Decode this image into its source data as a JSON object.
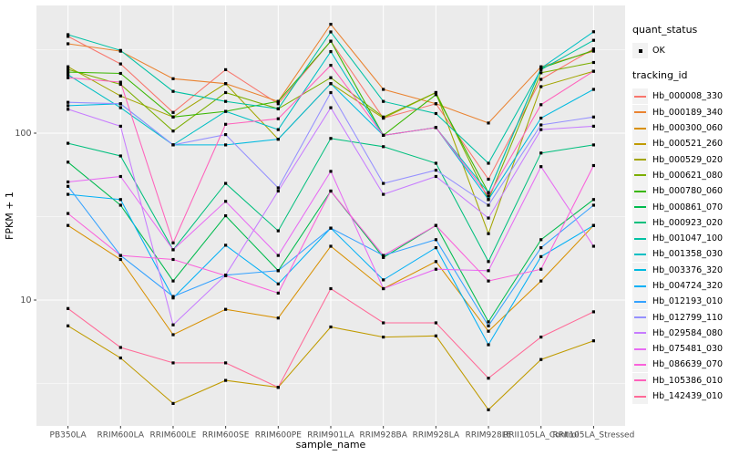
{
  "legend": {
    "quant_status": {
      "title": "quant_status",
      "items": [
        {
          "label": "OK",
          "marker": "black-square"
        }
      ]
    },
    "tracking": {
      "title": "tracking_id"
    }
  },
  "colors": {
    "panel_bg": "#EBEBEB",
    "grid": "#FFFFFF",
    "tick_text": "#4D4D4D",
    "axis_title": "#000000",
    "marker": "#000000",
    "legend_key_bg": "#F2F2F2"
  },
  "chart_data": {
    "type": "line",
    "title": "",
    "xlabel": "sample_name",
    "ylabel": "FPKM + 1",
    "y_scale": "log10",
    "ylim": [
      1.76,
      582
    ],
    "y_major_ticks": [
      10,
      100
    ],
    "y_minor_ticks": [
      3.162,
      31.62,
      316.2
    ],
    "grid": true,
    "legend_position": "right",
    "marker": "black-square",
    "categories": [
      "PB350LA",
      "RRIM600LA",
      "RRIM600LE",
      "RRIM600SE",
      "RRIM600PE",
      "RRIM901LA",
      "RRIM928BA",
      "RRIM928LA",
      "RRIM928LE",
      "RRII105LA_Control",
      "RRII105LA_Stressed"
    ],
    "series": [
      {
        "name": "Hb_000008_330",
        "color": "#F8766D",
        "quant_status": "OK",
        "values": [
          380,
          260,
          133,
          240,
          150,
          356,
          123,
          150,
          53,
          210,
          320
        ]
      },
      {
        "name": "Hb_000189_340",
        "color": "#EA8331",
        "quant_status": "OK",
        "values": [
          343,
          310,
          212,
          198,
          155,
          449,
          183,
          150,
          115,
          250,
          310
        ]
      },
      {
        "name": "Hb_000300_060",
        "color": "#D89000",
        "quant_status": "OK",
        "values": [
          28,
          17.5,
          6.2,
          8.8,
          7.8,
          21,
          11.7,
          17,
          6.5,
          13,
          28
        ]
      },
      {
        "name": "Hb_000521_260",
        "color": "#C09B00",
        "quant_status": "OK",
        "values": [
          7,
          4.5,
          2.4,
          3.3,
          3,
          6.9,
          6,
          6.1,
          2.2,
          4.4,
          5.7
        ]
      },
      {
        "name": "Hb_000529_020",
        "color": "#A3A500",
        "quant_status": "OK",
        "values": [
          250,
          167,
          125,
          198,
          92,
          198,
          123,
          175,
          25,
          190,
          235
        ]
      },
      {
        "name": "Hb_000621_080",
        "color": "#7CAE00",
        "quant_status": "OK",
        "values": [
          241,
          196,
          103,
          175,
          140,
          215,
          125,
          175,
          40,
          230,
          265
        ]
      },
      {
        "name": "Hb_000780_060",
        "color": "#39B600",
        "quant_status": "OK",
        "values": [
          232,
          228,
          125,
          135,
          155,
          356,
          97,
          170,
          44,
          245,
          313
        ]
      },
      {
        "name": "Hb_000861_070",
        "color": "#00BB4E",
        "quant_status": "OK",
        "values": [
          67,
          37,
          13,
          32,
          15,
          45,
          18,
          28,
          7.4,
          23,
          40
        ]
      },
      {
        "name": "Hb_000923_020",
        "color": "#00BF7D",
        "quant_status": "OK",
        "values": [
          87,
          73,
          20,
          50,
          26,
          93,
          83,
          66,
          17,
          76,
          85
        ]
      },
      {
        "name": "Hb_001047_100",
        "color": "#00C1A3",
        "quant_status": "OK",
        "values": [
          389,
          313,
          178,
          155,
          140,
          404,
          155,
          131,
          66,
          240,
          360
        ]
      },
      {
        "name": "Hb_001358_030",
        "color": "#00BFC4",
        "quant_status": "OK",
        "values": [
          224,
          142,
          85,
          135,
          105,
          308,
          97,
          108,
          44,
          245,
          405
        ]
      },
      {
        "name": "Hb_003376_320",
        "color": "#00BAE0",
        "quant_status": "OK",
        "values": [
          146,
          150,
          85,
          85,
          92,
          198,
          97,
          108,
          40,
          123,
          183
        ]
      },
      {
        "name": "Hb_004724_320",
        "color": "#00B0F6",
        "quant_status": "OK",
        "values": [
          43,
          40,
          10.3,
          21.3,
          12.5,
          27,
          13.2,
          20.6,
          5.4,
          18.2,
          28
        ]
      },
      {
        "name": "Hb_012193_010",
        "color": "#35A2FF",
        "quant_status": "OK",
        "values": [
          48,
          18.5,
          10.5,
          14.1,
          15,
          27,
          18.5,
          23,
          7,
          20.6,
          37
        ]
      },
      {
        "name": "Hb_012799_110",
        "color": "#9590FF",
        "quant_status": "OK",
        "values": [
          153,
          150,
          85,
          98,
          47,
          175,
          50,
          60,
          37,
          112,
          125
        ]
      },
      {
        "name": "Hb_029584_080",
        "color": "#C77CFF",
        "quant_status": "OK",
        "values": [
          139,
          110,
          7.1,
          14.1,
          45,
          142,
          43,
          55,
          31,
          105,
          110
        ]
      },
      {
        "name": "Hb_075481_030",
        "color": "#E76BF3",
        "quant_status": "OK",
        "values": [
          51,
          55,
          20,
          39,
          18.5,
          59,
          11.7,
          15.3,
          15,
          63,
          21
        ]
      },
      {
        "name": "Hb_086639_070",
        "color": "#FA62DB",
        "quant_status": "OK",
        "values": [
          33,
          18.5,
          17.5,
          14,
          11,
          45,
          18.5,
          28,
          13,
          15.3,
          64
        ]
      },
      {
        "name": "Hb_105386_010",
        "color": "#FF62BC",
        "quant_status": "OK",
        "values": [
          215,
          202,
          22,
          113,
          122,
          255,
          97,
          108,
          42,
          148,
          235
        ]
      },
      {
        "name": "Hb_142439_010",
        "color": "#FF6A98",
        "quant_status": "OK",
        "values": [
          8.9,
          5.2,
          4.2,
          4.2,
          3,
          11.7,
          7.3,
          7.3,
          3.4,
          6,
          8.5
        ]
      }
    ]
  }
}
